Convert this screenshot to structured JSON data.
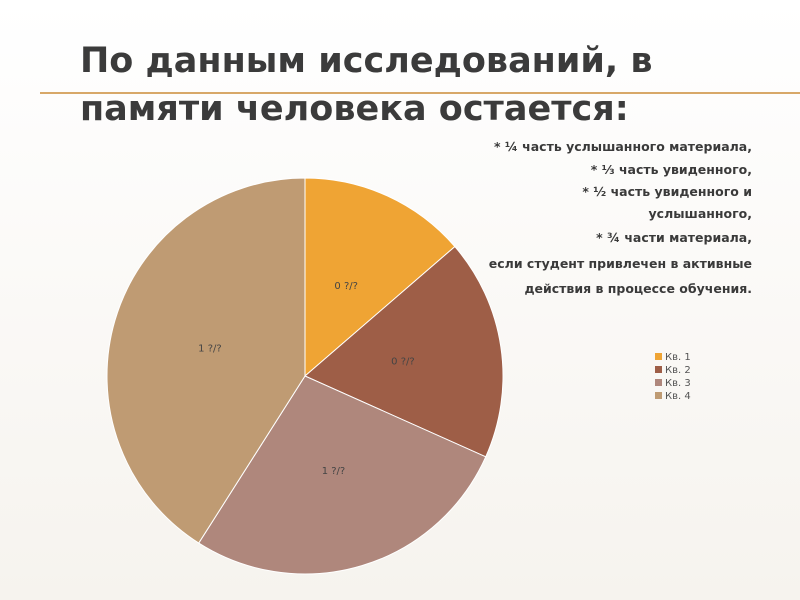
{
  "title_lines": [
    "По данным исследований, в",
    "памяти человека остается:"
  ],
  "notes": [
    "* ¼  часть услышанного материала,",
    "* ⅓ часть увиденного,",
    "* ½  часть увиденного и",
    "услышанного,",
    "* ¾ части материала,",
    "если студент привлечен в активные",
    "действия в процессе обучения."
  ],
  "chart_data": {
    "type": "pie",
    "categories": [
      "Кв. 1",
      "Кв. 2",
      "Кв. 3",
      "Кв. 4"
    ],
    "values": [
      0.25,
      0.33,
      0.5,
      0.75
    ],
    "value_labels": [
      "0 ?/?",
      "0 ?/?",
      "1 ?/?",
      "1 ?/?"
    ],
    "colors": [
      "#efa434",
      "#9e5e47",
      "#af877c",
      "#bf9b73"
    ],
    "legend": "right"
  }
}
